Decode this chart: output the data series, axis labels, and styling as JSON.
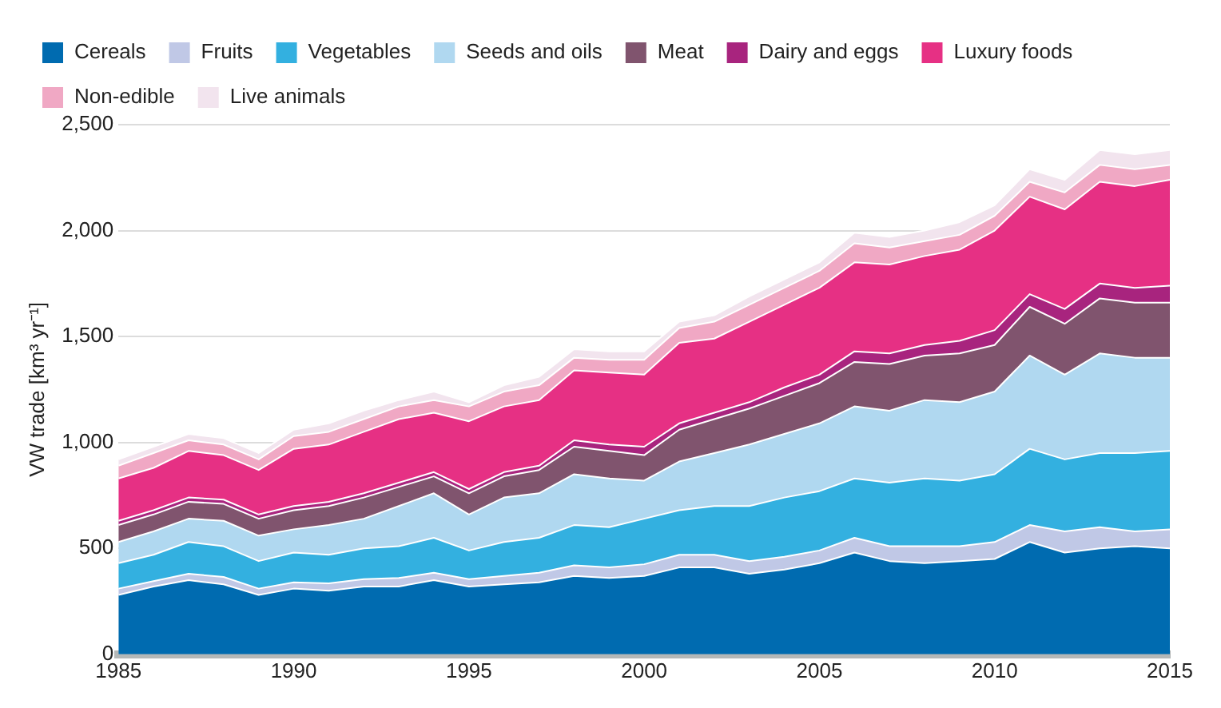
{
  "chart_data": {
    "type": "area",
    "stacked": true,
    "ylabel": "VW trade [km³ yr⁻¹]",
    "x": [
      1985,
      1986,
      1987,
      1988,
      1989,
      1990,
      1991,
      1992,
      1993,
      1994,
      1995,
      1996,
      1997,
      1998,
      1999,
      2000,
      2001,
      2002,
      2003,
      2004,
      2005,
      2006,
      2007,
      2008,
      2009,
      2010,
      2011,
      2012,
      2013,
      2014,
      2015
    ],
    "xlim": [
      1985,
      2015
    ],
    "xticks": [
      1985,
      1990,
      1995,
      2000,
      2005,
      2010,
      2015
    ],
    "ylim": [
      0,
      2500
    ],
    "yticks": [
      0,
      500,
      {
        "value": 1000,
        "label": "1,000"
      },
      {
        "value": 1500,
        "label": "1,500"
      },
      {
        "value": 2000,
        "label": "2,000"
      },
      {
        "value": 2500,
        "label": "2,500"
      }
    ],
    "grid": "y",
    "legend": "top",
    "series": [
      {
        "name": "Cereals",
        "color": "#006bb0",
        "values": [
          280,
          320,
          350,
          330,
          280,
          310,
          300,
          320,
          320,
          350,
          320,
          330,
          340,
          370,
          360,
          370,
          410,
          410,
          380,
          400,
          430,
          480,
          440,
          430,
          440,
          450,
          530,
          480,
          500,
          510,
          500
        ]
      },
      {
        "name": "Fruits",
        "color": "#c0c8e6",
        "values": [
          30,
          25,
          30,
          35,
          30,
          30,
          35,
          35,
          40,
          35,
          35,
          40,
          45,
          50,
          50,
          55,
          60,
          60,
          60,
          60,
          60,
          70,
          70,
          80,
          70,
          80,
          80,
          100,
          100,
          70,
          90
        ]
      },
      {
        "name": "Vegetables",
        "color": "#33b0e0",
        "values": [
          120,
          125,
          150,
          145,
          130,
          140,
          135,
          145,
          150,
          165,
          135,
          160,
          165,
          190,
          190,
          215,
          210,
          230,
          260,
          280,
          280,
          280,
          300,
          320,
          310,
          320,
          360,
          340,
          350,
          370,
          370
        ]
      },
      {
        "name": "Seeds and oils",
        "color": "#b0d8f0",
        "values": [
          100,
          110,
          110,
          120,
          120,
          110,
          140,
          140,
          190,
          210,
          170,
          210,
          210,
          240,
          230,
          180,
          230,
          250,
          290,
          300,
          320,
          340,
          340,
          370,
          370,
          390,
          440,
          400,
          470,
          450,
          440
        ]
      },
      {
        "name": "Meat",
        "color": "#80546e",
        "values": [
          80,
          80,
          80,
          80,
          80,
          90,
          90,
          100,
          90,
          80,
          100,
          100,
          110,
          130,
          130,
          120,
          150,
          160,
          170,
          180,
          190,
          210,
          220,
          210,
          230,
          220,
          230,
          240,
          260,
          260,
          260
        ]
      },
      {
        "name": "Dairy and eggs",
        "color": "#a8247e",
        "values": [
          20,
          20,
          20,
          20,
          20,
          20,
          20,
          20,
          20,
          20,
          20,
          20,
          20,
          30,
          30,
          40,
          30,
          30,
          30,
          40,
          40,
          50,
          50,
          50,
          60,
          70,
          60,
          70,
          70,
          70,
          80
        ]
      },
      {
        "name": "Luxury foods",
        "color": "#e63084",
        "values": [
          200,
          200,
          220,
          210,
          210,
          270,
          270,
          290,
          300,
          280,
          320,
          310,
          310,
          330,
          340,
          340,
          380,
          350,
          380,
          390,
          410,
          420,
          420,
          420,
          430,
          470,
          460,
          470,
          480,
          480,
          500
        ]
      },
      {
        "name": "Non-edible",
        "color": "#f0a8c4",
        "values": [
          60,
          70,
          50,
          50,
          50,
          60,
          60,
          60,
          60,
          60,
          70,
          70,
          70,
          60,
          60,
          70,
          70,
          80,
          80,
          80,
          80,
          90,
          80,
          70,
          70,
          70,
          70,
          80,
          80,
          80,
          70
        ]
      },
      {
        "name": "Live animals",
        "color": "#f2e4ee",
        "values": [
          30,
          30,
          30,
          30,
          30,
          30,
          40,
          40,
          30,
          40,
          20,
          30,
          40,
          40,
          40,
          40,
          30,
          30,
          40,
          40,
          40,
          50,
          50,
          50,
          60,
          50,
          60,
          60,
          70,
          70,
          70
        ]
      }
    ]
  }
}
